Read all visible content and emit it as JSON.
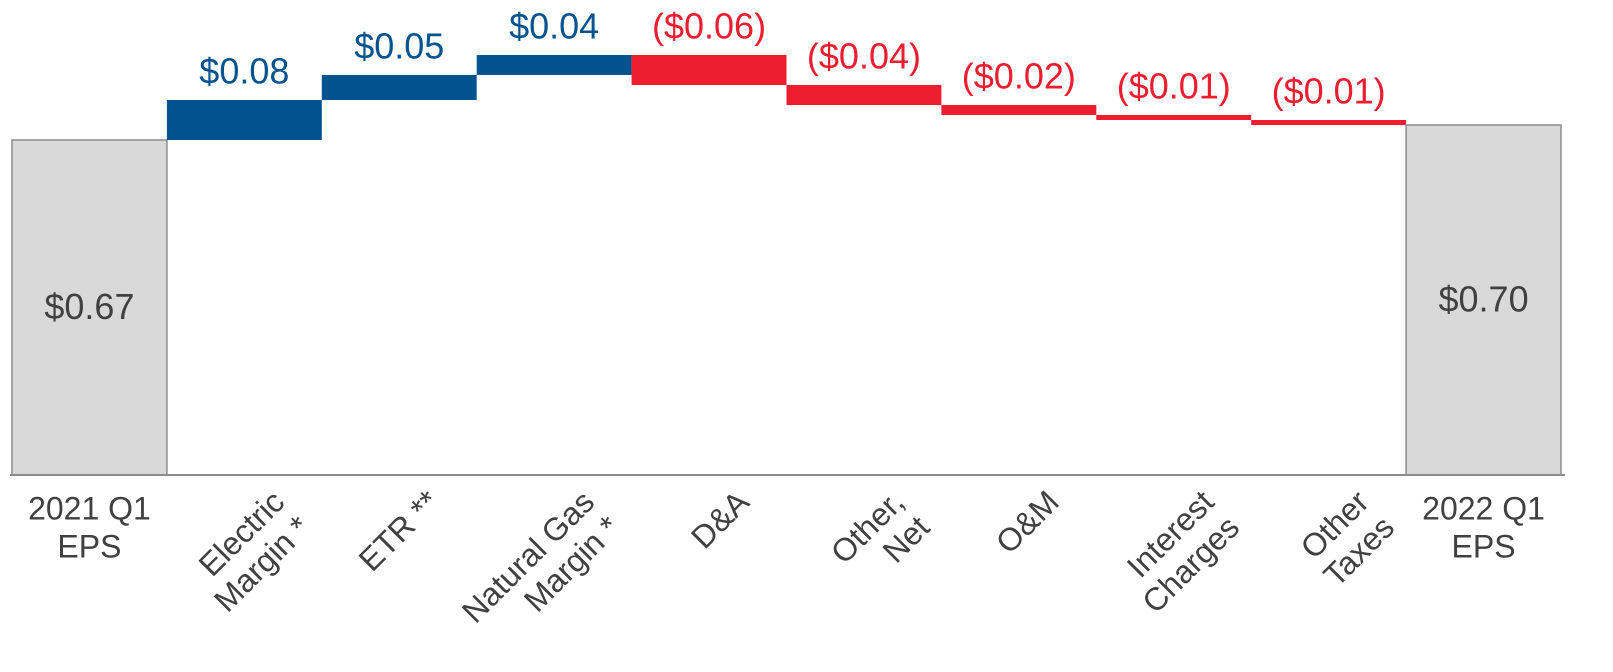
{
  "chart_data": {
    "type": "waterfall",
    "categories": [
      [
        "2021 Q1",
        "EPS"
      ],
      [
        "Electric",
        "Margin *"
      ],
      [
        "ETR **"
      ],
      [
        "Natural Gas",
        "Margin *"
      ],
      [
        "D&A"
      ],
      [
        "Other,",
        "Net"
      ],
      [
        "O&M"
      ],
      [
        "Interest",
        "Charges"
      ],
      [
        "Other",
        "Taxes"
      ],
      [
        "2022 Q1",
        "EPS"
      ]
    ],
    "values": [
      0.67,
      0.08,
      0.05,
      0.04,
      -0.06,
      -0.04,
      -0.02,
      -0.01,
      -0.01,
      0.7
    ],
    "value_labels": [
      "$0.67",
      "$0.08",
      "$0.05",
      "$0.04",
      "($0.06)",
      "($0.04)",
      "($0.02)",
      "($0.01)",
      "($0.01)",
      "$0.70"
    ],
    "colors": {
      "increase": "#00538f",
      "decrease": "#ed1c2e",
      "total": "#d9d9d9"
    }
  }
}
